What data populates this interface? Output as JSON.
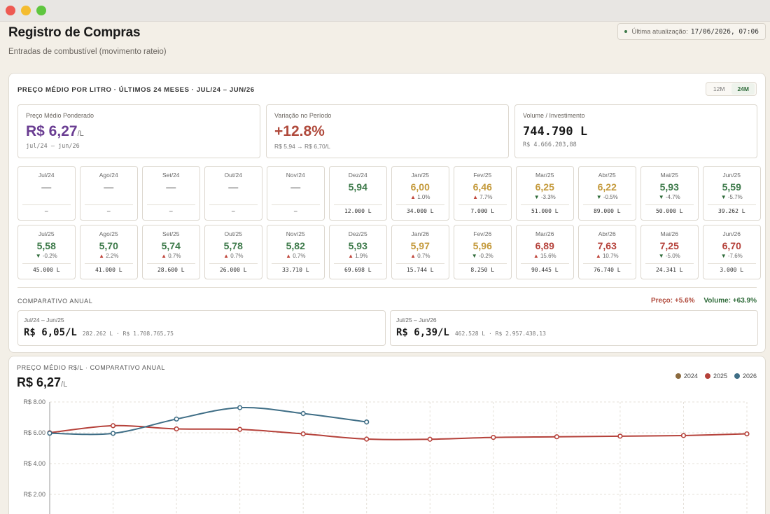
{
  "header": {
    "title": "Registro de Compras",
    "subtitle": "Entradas de combustível (movimento rateio)",
    "update_label": "Última atualização:",
    "update_value": "17/06/2026, 07:06"
  },
  "panel": {
    "title": "PREÇO MÉDIO POR LITRO · ÚLTIMOS 24 MESES · JUL/24 – JUN/26",
    "toggle": [
      "12M",
      "24M"
    ],
    "toggle_active": "24M"
  },
  "kpis": [
    {
      "label": "Preço Médio Ponderado",
      "value": "R$ 6,27",
      "unit": "/L",
      "note": "jul/24 – jun/26"
    },
    {
      "label": "Variação no Período",
      "value": "+12.8%",
      "note": "R$ 5,94 → R$ 6,70/L"
    },
    {
      "label": "Volume / Investimento",
      "value": "744.790 L",
      "note": "R$ 4.666.203,88"
    }
  ],
  "months": [
    {
      "label": "Jul/24",
      "price": "—",
      "change": "",
      "dir": "",
      "vol": "–",
      "tone": "dash"
    },
    {
      "label": "Ago/24",
      "price": "—",
      "change": "",
      "dir": "",
      "vol": "–",
      "tone": "dash"
    },
    {
      "label": "Set/24",
      "price": "—",
      "change": "",
      "dir": "",
      "vol": "–",
      "tone": "dash"
    },
    {
      "label": "Out/24",
      "price": "—",
      "change": "",
      "dir": "",
      "vol": "–",
      "tone": "dash"
    },
    {
      "label": "Nov/24",
      "price": "—",
      "change": "",
      "dir": "",
      "vol": "–",
      "tone": "dash"
    },
    {
      "label": "Dez/24",
      "price": "5,94",
      "change": "",
      "dir": "",
      "vol": "12.000 L",
      "tone": "green"
    },
    {
      "label": "Jan/25",
      "price": "6,00",
      "change": "1.0%",
      "dir": "up",
      "vol": "34.000 L",
      "tone": "gold"
    },
    {
      "label": "Fev/25",
      "price": "6,46",
      "change": "7.7%",
      "dir": "up",
      "vol": "7.000 L",
      "tone": "gold"
    },
    {
      "label": "Mar/25",
      "price": "6,25",
      "change": "-3.3%",
      "dir": "down",
      "vol": "51.000 L",
      "tone": "gold"
    },
    {
      "label": "Abr/25",
      "price": "6,22",
      "change": "-0.5%",
      "dir": "down",
      "vol": "89.000 L",
      "tone": "gold"
    },
    {
      "label": "Mai/25",
      "price": "5,93",
      "change": "-4.7%",
      "dir": "down",
      "vol": "50.000 L",
      "tone": "green"
    },
    {
      "label": "Jun/25",
      "price": "5,59",
      "change": "-5.7%",
      "dir": "down",
      "vol": "39.262 L",
      "tone": "green"
    },
    {
      "label": "Jul/25",
      "price": "5,58",
      "change": "-0.2%",
      "dir": "down",
      "vol": "45.000 L",
      "tone": "green"
    },
    {
      "label": "Ago/25",
      "price": "5,70",
      "change": "2.2%",
      "dir": "up",
      "vol": "41.000 L",
      "tone": "green"
    },
    {
      "label": "Set/25",
      "price": "5,74",
      "change": "0.7%",
      "dir": "up",
      "vol": "28.600 L",
      "tone": "green"
    },
    {
      "label": "Out/25",
      "price": "5,78",
      "change": "0.7%",
      "dir": "up",
      "vol": "26.000 L",
      "tone": "green"
    },
    {
      "label": "Nov/25",
      "price": "5,82",
      "change": "0.7%",
      "dir": "up",
      "vol": "33.710 L",
      "tone": "green"
    },
    {
      "label": "Dez/25",
      "price": "5,93",
      "change": "1.9%",
      "dir": "up",
      "vol": "69.698 L",
      "tone": "green"
    },
    {
      "label": "Jan/26",
      "price": "5,97",
      "change": "0.7%",
      "dir": "up",
      "vol": "15.744 L",
      "tone": "gold"
    },
    {
      "label": "Fev/26",
      "price": "5,96",
      "change": "-0.2%",
      "dir": "down",
      "vol": "8.250 L",
      "tone": "gold"
    },
    {
      "label": "Mar/26",
      "price": "6,89",
      "change": "15.6%",
      "dir": "up",
      "vol": "90.445 L",
      "tone": "red"
    },
    {
      "label": "Abr/26",
      "price": "7,63",
      "change": "10.7%",
      "dir": "up",
      "vol": "76.740 L",
      "tone": "red"
    },
    {
      "label": "Mai/26",
      "price": "7,25",
      "change": "-5.0%",
      "dir": "down",
      "vol": "24.341 L",
      "tone": "red"
    },
    {
      "label": "Jun/26",
      "price": "6,70",
      "change": "-7.6%",
      "dir": "down",
      "vol": "3.000 L",
      "tone": "red"
    }
  ],
  "comparison": {
    "title": "COMPARATIVO ANUAL",
    "price_delta": "Preço: +5.6%",
    "volume_delta": "Volume: +63.9%",
    "periods": [
      {
        "period": "Jul/24 – Jun/25",
        "price": "R$ 6,05/L",
        "meta": "282.262 L · R$ 1.708.765,75"
      },
      {
        "period": "Jul/25 – Jun/26",
        "price": "R$ 6,39/L",
        "meta": "462.528 L · R$ 2.957.438,13"
      }
    ]
  },
  "chart_panel": {
    "title": "PREÇO MÉDIO R$/L · COMPARATIVO ANUAL",
    "value": "R$ 6,27",
    "unit": "/L"
  },
  "colors": {
    "2024": "#8b6a3e",
    "2025": "#b5413a",
    "2026": "#3f6e86"
  },
  "chart_data": {
    "type": "line",
    "title": "",
    "ylim": [
      0,
      8
    ],
    "yticks": [
      "R$ 8.00",
      "R$ 6.00",
      "R$ 4.00",
      "R$ 2.00"
    ],
    "ytick_values": [
      8,
      6,
      4,
      2
    ],
    "n_points": 12,
    "grid": true,
    "legend_position": "top-right",
    "series": [
      {
        "name": "2024",
        "values": []
      },
      {
        "name": "2025",
        "values": [
          6.0,
          6.46,
          6.25,
          6.22,
          5.93,
          5.59,
          5.58,
          5.7,
          5.74,
          5.78,
          5.82,
          5.93
        ]
      },
      {
        "name": "2026",
        "values": [
          5.97,
          5.96,
          6.89,
          7.63,
          7.25,
          6.7
        ]
      }
    ]
  }
}
